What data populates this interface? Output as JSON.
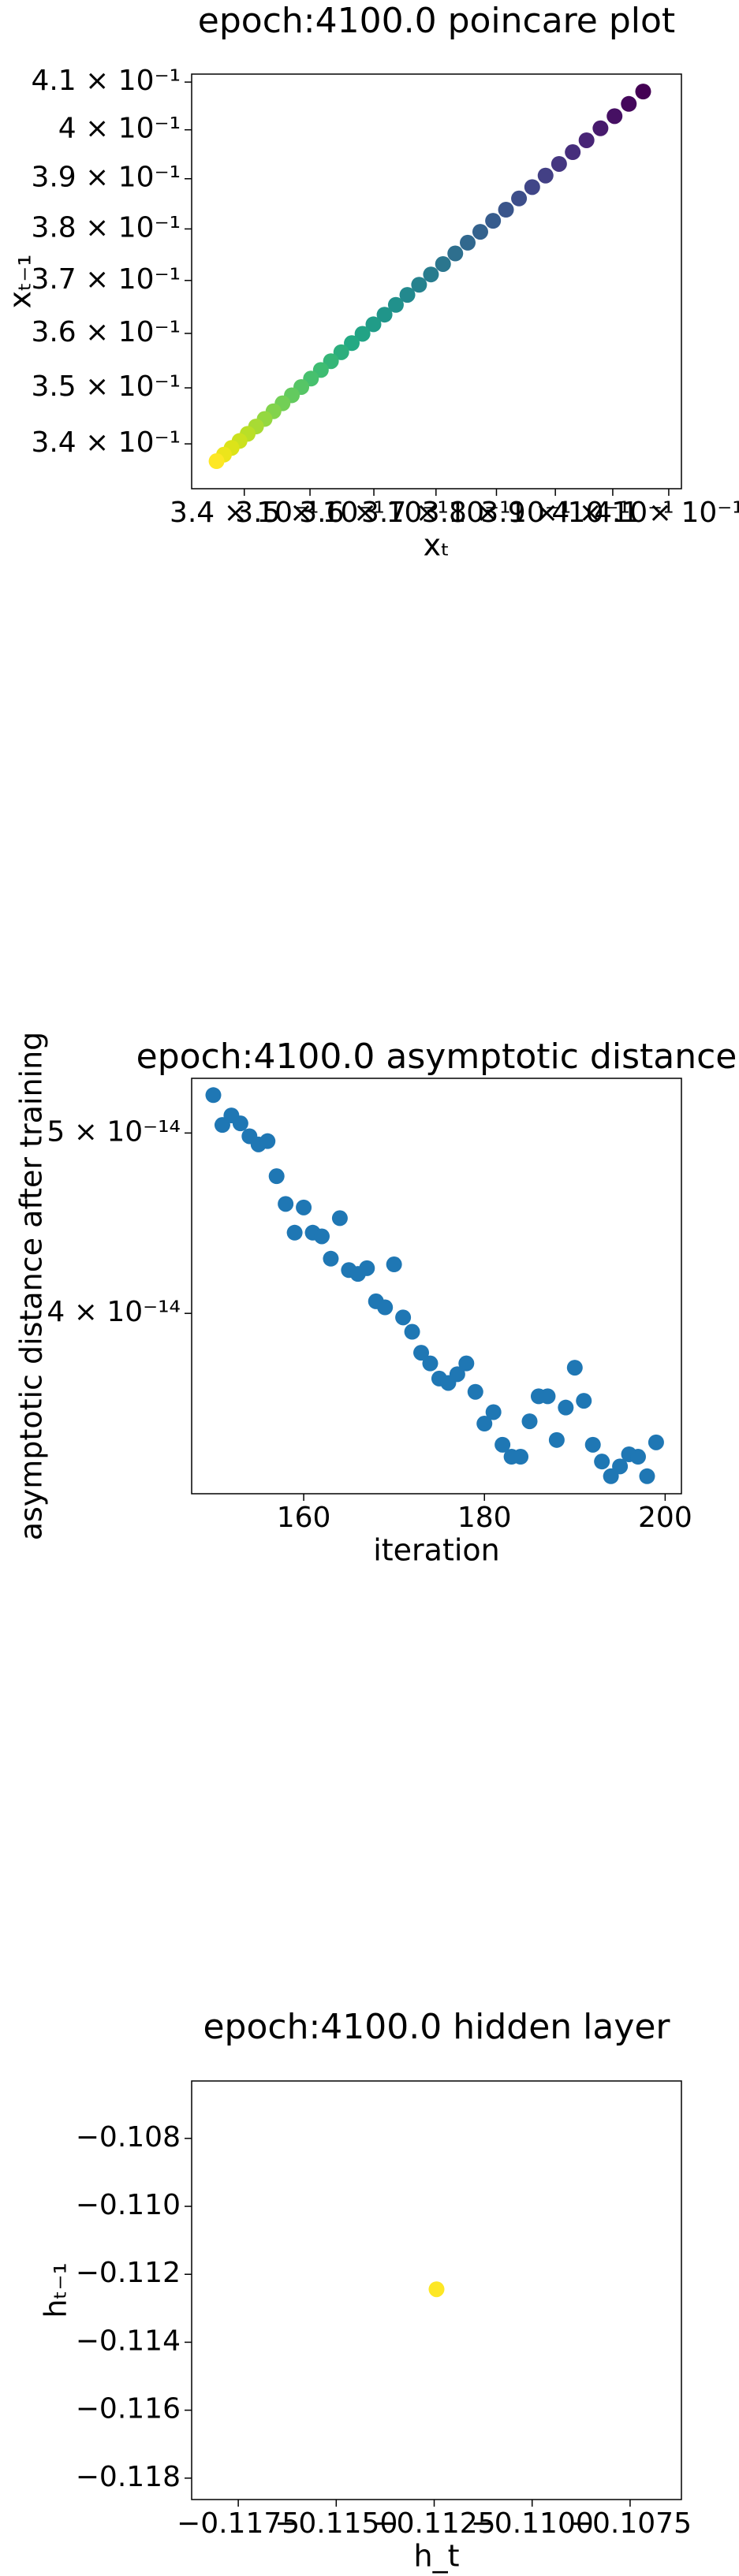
{
  "chart_data": [
    {
      "type": "scatter",
      "title": "epoch:4100.0 poincare plot",
      "xlabel": "xₜ",
      "ylabel": "xₜ₋₁",
      "xscale": "log",
      "yscale": "log",
      "xlim": [
        0.3322,
        0.4123
      ],
      "ylim": [
        0.3322,
        0.4117
      ],
      "xticks": [
        {
          "value": 0.34,
          "label": "3.4 × 10⁻¹"
        },
        {
          "value": 0.35,
          "label": "3.5 × 10⁻¹"
        },
        {
          "value": 0.36,
          "label": "3.6 × 10⁻¹"
        },
        {
          "value": 0.37,
          "label": "3.7 × 10⁻¹"
        },
        {
          "value": 0.38,
          "label": "3.8 × 10⁻¹"
        },
        {
          "value": 0.39,
          "label": "3.9 × 10⁻¹"
        },
        {
          "value": 0.4,
          "label": "4 × 10⁻¹"
        },
        {
          "value": 0.41,
          "label": "4.1 × 10⁻¹"
        }
      ],
      "yticks": [
        {
          "value": 0.34,
          "label": "3.4 × 10⁻¹"
        },
        {
          "value": 0.35,
          "label": "3.5 × 10⁻¹"
        },
        {
          "value": 0.36,
          "label": "3.6 × 10⁻¹"
        },
        {
          "value": 0.37,
          "label": "3.7 × 10⁻¹"
        },
        {
          "value": 0.38,
          "label": "3.8 × 10⁻¹"
        },
        {
          "value": 0.39,
          "label": "3.9 × 10⁻¹"
        },
        {
          "value": 0.4,
          "label": "4 × 10⁻¹"
        },
        {
          "value": 0.41,
          "label": "4.1 × 10⁻¹"
        }
      ],
      "x": [
        0.4054,
        0.40284,
        0.40032,
        0.39784,
        0.3954,
        0.393,
        0.39064,
        0.38832,
        0.38604,
        0.3838,
        0.3816,
        0.37943,
        0.3773,
        0.37521,
        0.37316,
        0.37115,
        0.36918,
        0.36725,
        0.36536,
        0.36351,
        0.3617,
        0.35993,
        0.3582,
        0.35651,
        0.35486,
        0.35325,
        0.35168,
        0.35015,
        0.34866,
        0.34721,
        0.34579,
        0.34441,
        0.34307,
        0.34177,
        0.34051,
        0.33929,
        0.33811,
        0.33697,
        0.33587
      ],
      "values": [
        0.408,
        0.4054,
        0.40284,
        0.40032,
        0.39784,
        0.3954,
        0.393,
        0.39064,
        0.38832,
        0.38604,
        0.3838,
        0.3816,
        0.37943,
        0.3773,
        0.37521,
        0.37316,
        0.37115,
        0.36918,
        0.36725,
        0.36536,
        0.36351,
        0.3617,
        0.35993,
        0.3582,
        0.35651,
        0.35486,
        0.35325,
        0.35168,
        0.35015,
        0.34866,
        0.34721,
        0.34579,
        0.34441,
        0.34307,
        0.34177,
        0.34051,
        0.33929,
        0.33811,
        0.33697
      ],
      "colors": [
        "#440154",
        "#45085c",
        "#461063",
        "#471a6d",
        "#482576",
        "#462e7c",
        "#453781",
        "#434085",
        "#404688",
        "#3d4e8a",
        "#3a558b",
        "#375c8d",
        "#34628d",
        "#31688e",
        "#2e6f8e",
        "#2b768e",
        "#287c8e",
        "#26828e",
        "#23898e",
        "#21918c",
        "#20958a",
        "#219c88",
        "#22a385",
        "#23a983",
        "#2cae7d",
        "#35b577",
        "#3ebc72",
        "#47c06e",
        "#56c566",
        "#63ca5f",
        "#72cf56",
        "#82d34c",
        "#94d840",
        "#a8db34",
        "#badf27",
        "#cbe11f",
        "#dce319",
        "#ece51b",
        "#fde725"
      ]
    },
    {
      "type": "scatter",
      "title": "epoch:4100.0 asymptotic distance",
      "xlabel": "iteration",
      "ylabel": "asymptotic distance after training",
      "yscale": "log",
      "color": "#1f77b4",
      "xlim": [
        147.6,
        201.8
      ],
      "ylim": [
        3.2e-14,
        5.35e-14
      ],
      "xticks": [
        160,
        180,
        200
      ],
      "yticks": [
        {
          "value": 5e-14,
          "label": "5 × 10⁻¹⁴"
        },
        {
          "value": 4e-14,
          "label": "4 × 10⁻¹⁴"
        }
      ],
      "x": [
        150,
        151,
        152,
        153,
        154,
        155,
        156,
        157,
        158,
        159,
        160,
        161,
        162,
        163,
        164,
        165,
        166,
        167,
        168,
        169,
        170,
        171,
        172,
        173,
        174,
        175,
        176,
        177,
        178,
        179,
        180,
        181,
        182,
        183,
        184,
        185,
        186,
        187,
        188,
        189,
        190,
        191,
        192,
        193,
        194,
        195,
        196,
        197,
        198,
        199
      ],
      "values": [
        5.24e-14,
        5.05e-14,
        5.11e-14,
        5.06e-14,
        4.98e-14,
        4.93e-14,
        4.95e-14,
        4.74e-14,
        4.58e-14,
        4.42e-14,
        4.56e-14,
        4.42e-14,
        4.4e-14,
        4.28e-14,
        4.5e-14,
        4.22e-14,
        4.2e-14,
        4.23e-14,
        4.06e-14,
        4.03e-14,
        4.25e-14,
        3.98e-14,
        3.91e-14,
        3.81e-14,
        3.76e-14,
        3.69e-14,
        3.67e-14,
        3.71e-14,
        3.76e-14,
        3.63e-14,
        3.49e-14,
        3.54e-14,
        3.4e-14,
        3.35e-14,
        3.35e-14,
        3.5e-14,
        3.61e-14,
        3.61e-14,
        3.42e-14,
        3.56e-14,
        3.74e-14,
        3.59e-14,
        3.4e-14,
        3.33e-14,
        3.27e-14,
        3.31e-14,
        3.36e-14,
        3.35e-14,
        3.27e-14,
        3.41e-14
      ]
    },
    {
      "type": "scatter",
      "title": "epoch:4100.0 hidden layer",
      "xlabel": "h_t",
      "ylabel": "hₜ₋₁",
      "color": "#fde725",
      "xlim": [
        -0.11869,
        -0.10619
      ],
      "ylim": [
        -0.11863,
        -0.10631
      ],
      "xticks": [
        {
          "value": -0.1175,
          "label": "−0.1175"
        },
        {
          "value": -0.115,
          "label": "−0.1150"
        },
        {
          "value": -0.1125,
          "label": "−0.1125"
        },
        {
          "value": -0.11,
          "label": "−0.1100"
        },
        {
          "value": -0.1075,
          "label": "−0.1075"
        }
      ],
      "yticks": [
        {
          "value": -0.108,
          "label": "−0.108"
        },
        {
          "value": -0.11,
          "label": "−0.110"
        },
        {
          "value": -0.112,
          "label": "−0.112"
        },
        {
          "value": -0.114,
          "label": "−0.114"
        },
        {
          "value": -0.116,
          "label": "−0.116"
        },
        {
          "value": -0.118,
          "label": "−0.118"
        }
      ],
      "x": [
        -0.11244
      ],
      "values": [
        -0.11244
      ]
    }
  ]
}
